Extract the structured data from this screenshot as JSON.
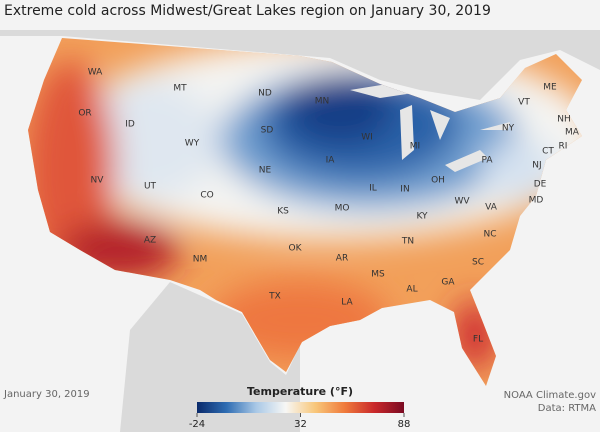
{
  "title": "Extreme cold across Midwest/Great Lakes region on January 30, 2019",
  "states": [
    "WA",
    "OR",
    "ID",
    "MT",
    "WY",
    "NV",
    "UT",
    "CO",
    "AZ",
    "NM",
    "ND",
    "SD",
    "NE",
    "KS",
    "OK",
    "TX",
    "MN",
    "IA",
    "MO",
    "AR",
    "LA",
    "WI",
    "IL",
    "MS",
    "MI",
    "IN",
    "KY",
    "TN",
    "AL",
    "GA",
    "FL",
    "OH",
    "WV",
    "PA",
    "NY",
    "VT",
    "ME",
    "NH",
    "MA",
    "RI",
    "CT",
    "NJ",
    "DE",
    "MD",
    "VA",
    "NC",
    "SC"
  ],
  "date": "January 30, 2019",
  "legend": {
    "title": "Temperature (°F)",
    "range": [
      -24,
      88
    ],
    "ticks": [
      -24,
      32,
      88
    ],
    "colors": [
      "#0a2a6b",
      "#2f6db3",
      "#a9c8e6",
      "#f7f7f5",
      "#f8c77a",
      "#ef7a3b",
      "#c9282b",
      "#7a0a22"
    ]
  },
  "credits": [
    "NOAA Climate.gov",
    "Data: RTMA"
  ]
}
